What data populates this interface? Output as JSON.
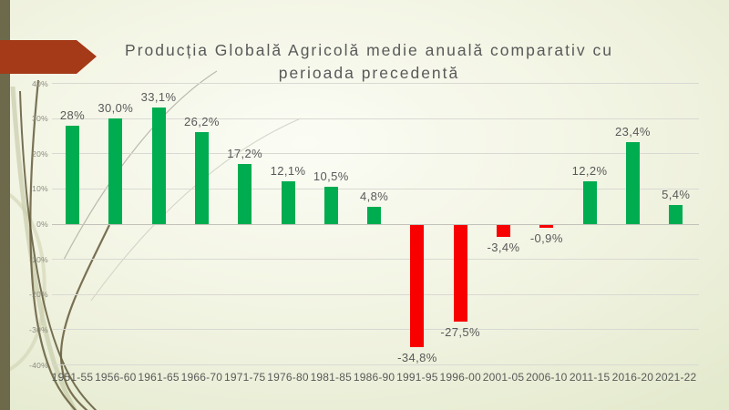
{
  "slide": {
    "title": "Producția Globală Agricolă medie anuală comparativ cu perioada precedentă",
    "accent": {
      "arrow_color": "#A43A18",
      "side_bar_color": "#6C6A4B",
      "vine_dark_color": "#6B6243",
      "vine_light_color": "#C6C9A7",
      "title_color": "#595959"
    }
  },
  "chart_data": {
    "type": "bar",
    "title": "Producția Globală Agricolă medie anuală comparativ cu perioada precedentă",
    "categories": [
      "1951-55",
      "1956-60",
      "1961-65",
      "1966-70",
      "1971-75",
      "1976-80",
      "1981-85",
      "1986-90",
      "1991-95",
      "1996-00",
      "2001-05",
      "2006-10",
      "2011-15",
      "2016-20",
      "2021-22"
    ],
    "values": [
      28,
      30.0,
      33.1,
      26.2,
      17.2,
      12.1,
      10.5,
      4.8,
      -34.8,
      -27.5,
      -3.4,
      -0.9,
      12.2,
      23.4,
      5.4
    ],
    "value_labels": [
      "28%",
      "30,0%",
      "33,1%",
      "26,2%",
      "17,2%",
      "12,1%",
      "10,5%",
      "4,8%",
      "-34,8%",
      "-27,5%",
      "-3,4%",
      "-0,9%",
      "12,2%",
      "23,4%",
      "5,4%"
    ],
    "y_ticks": [
      {
        "value": 40,
        "label": "40%"
      },
      {
        "value": 30,
        "label": "30%"
      },
      {
        "value": 20,
        "label": "20%"
      },
      {
        "value": 10,
        "label": "10%"
      },
      {
        "value": 0,
        "label": "0%"
      },
      {
        "value": -10,
        "label": "-10%"
      },
      {
        "value": -20,
        "label": "-20%"
      },
      {
        "value": -30,
        "label": "-30%"
      },
      {
        "value": -40,
        "label": "-40%"
      }
    ],
    "ylim": [
      -40,
      40
    ],
    "grid": true,
    "legend": "none",
    "positive_color": "#00AC50",
    "negative_color": "#F80000",
    "label_color": "#595959"
  }
}
